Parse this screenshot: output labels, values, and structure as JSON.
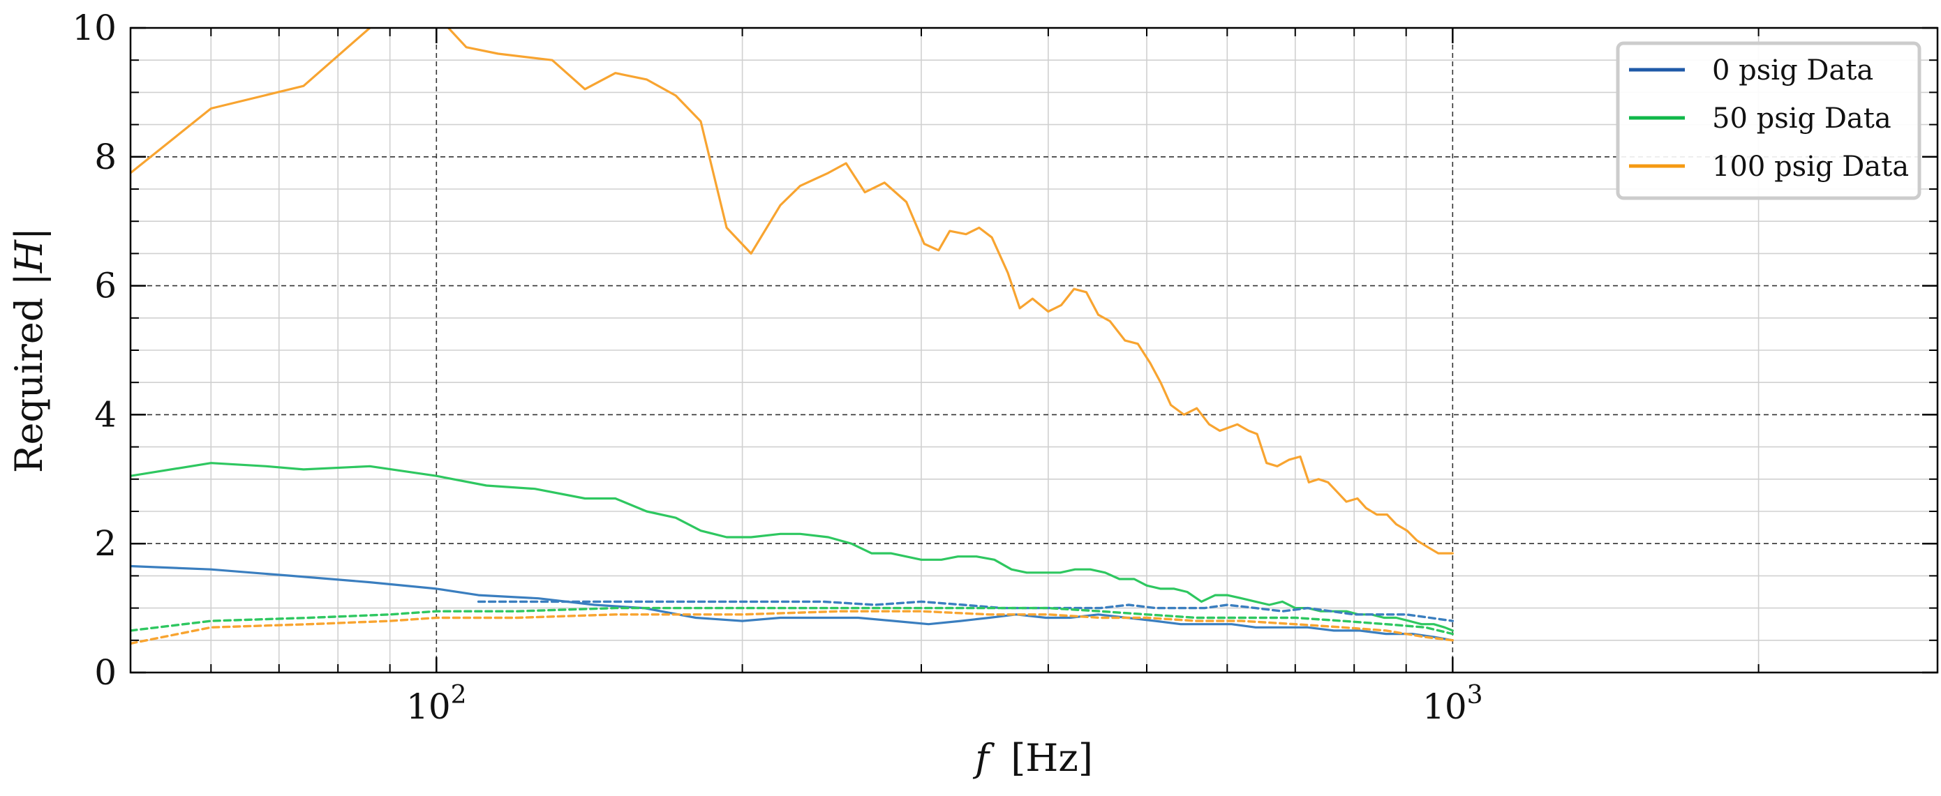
{
  "chart_data": {
    "type": "line",
    "title": "",
    "xlabel": "f [Hz]",
    "xlabel_parts": {
      "symbol": "f",
      "unit": "[Hz]"
    },
    "ylabel": "Required |H|",
    "ylabel_parts": {
      "text": "Required ",
      "symbol": "|H|"
    },
    "x_scale": "log",
    "xlim": [
      50,
      3000
    ],
    "ylim": [
      0,
      10
    ],
    "x_major_ticks": [
      {
        "value": 100,
        "base": "10",
        "exp": "2"
      },
      {
        "value": 1000,
        "base": "10",
        "exp": "3"
      }
    ],
    "y_ticks": [
      0,
      2,
      4,
      6,
      8,
      10
    ],
    "y_tick_labels": [
      "0",
      "2",
      "4",
      "6",
      "8",
      "10"
    ],
    "grid": true,
    "legend_position": "top-right",
    "colors": {
      "0 psig": "#3a7ebf",
      "50 psig": "#2ec760",
      "100 psig": "#f8a430"
    },
    "legend": [
      {
        "label": "0 psig Data",
        "color": "#1f5aa8"
      },
      {
        "label": "50 psig Data",
        "color": "#10b84a"
      },
      {
        "label": "100 psig Data",
        "color": "#f59a12"
      }
    ],
    "series": [
      {
        "group": "100 psig",
        "style": "solid",
        "color": "#f8a430",
        "legend_label": "100 psig Data",
        "x": [
          50,
          60,
          74,
          86,
          90,
          100,
          107,
          115,
          130,
          140,
          150,
          161,
          172,
          182,
          193,
          204,
          218,
          228,
          243,
          253,
          264,
          276,
          290,
          302,
          312,
          320,
          332,
          342,
          352,
          365,
          375,
          386,
          400,
          412,
          424,
          436,
          448,
          460,
          476,
          490,
          504,
          516,
          528,
          544,
          560,
          576,
          590,
          602,
          614,
          630,
          642,
          656,
          672,
          690,
          708,
          722,
          738,
          754,
          770,
          786,
          806,
          822,
          842,
          862,
          880,
          902,
          922,
          944,
          968,
          1000
        ],
        "values": [
          7.75,
          8.75,
          9.1,
          10.0,
          10.2,
          10.2,
          9.7,
          9.6,
          9.5,
          9.05,
          9.3,
          9.2,
          8.95,
          8.55,
          6.9,
          6.5,
          7.25,
          7.55,
          7.75,
          7.9,
          7.45,
          7.6,
          7.3,
          6.65,
          6.55,
          6.85,
          6.8,
          6.9,
          6.75,
          6.2,
          5.65,
          5.8,
          5.6,
          5.7,
          5.95,
          5.9,
          5.55,
          5.45,
          5.15,
          5.1,
          4.8,
          4.5,
          4.15,
          4.0,
          4.1,
          3.85,
          3.75,
          3.8,
          3.85,
          3.75,
          3.7,
          3.25,
          3.2,
          3.3,
          3.35,
          2.95,
          3.0,
          2.95,
          2.8,
          2.65,
          2.7,
          2.55,
          2.45,
          2.45,
          2.3,
          2.2,
          2.05,
          1.95,
          1.85,
          1.85
        ]
      },
      {
        "group": "50 psig",
        "style": "solid",
        "color": "#2ec760",
        "legend_label": "50 psig Data",
        "x": [
          50,
          60,
          68,
          74,
          86,
          100,
          112,
          125,
          140,
          150,
          161,
          172,
          182,
          193,
          204,
          218,
          228,
          243,
          256,
          268,
          280,
          300,
          314,
          326,
          340,
          354,
          368,
          381,
          395,
          411,
          425,
          440,
          455,
          470,
          486,
          500,
          516,
          532,
          548,
          566,
          584,
          600,
          620,
          640,
          660,
          680,
          700,
          720,
          742,
          764,
          786,
          808,
          832,
          856,
          880,
          906,
          932,
          958,
          982,
          1000
        ],
        "values": [
          3.05,
          3.25,
          3.2,
          3.15,
          3.2,
          3.05,
          2.9,
          2.85,
          2.7,
          2.7,
          2.5,
          2.4,
          2.2,
          2.1,
          2.1,
          2.15,
          2.15,
          2.1,
          2.0,
          1.85,
          1.85,
          1.75,
          1.75,
          1.8,
          1.8,
          1.75,
          1.6,
          1.55,
          1.55,
          1.55,
          1.6,
          1.6,
          1.55,
          1.45,
          1.45,
          1.35,
          1.3,
          1.3,
          1.25,
          1.1,
          1.2,
          1.2,
          1.15,
          1.1,
          1.05,
          1.1,
          1.0,
          1.0,
          0.95,
          0.95,
          0.95,
          0.9,
          0.9,
          0.85,
          0.85,
          0.8,
          0.75,
          0.75,
          0.7,
          0.65
        ]
      },
      {
        "group": "0 psig",
        "style": "solid",
        "color": "#3a7ebf",
        "legend_label": "0 psig Data",
        "x": [
          50,
          60,
          72,
          86,
          100,
          110,
          126,
          143,
          160,
          180,
          200,
          218,
          238,
          260,
          282,
          305,
          328,
          350,
          372,
          398,
          420,
          448,
          478,
          510,
          540,
          572,
          606,
          640,
          680,
          720,
          764,
          810,
          860,
          912,
          960,
          1000
        ],
        "values": [
          1.65,
          1.6,
          1.5,
          1.4,
          1.3,
          1.2,
          1.15,
          1.05,
          1.0,
          0.85,
          0.8,
          0.85,
          0.85,
          0.85,
          0.8,
          0.75,
          0.8,
          0.85,
          0.9,
          0.85,
          0.85,
          0.9,
          0.85,
          0.8,
          0.75,
          0.75,
          0.75,
          0.7,
          0.7,
          0.7,
          0.65,
          0.65,
          0.6,
          0.6,
          0.55,
          0.5
        ]
      },
      {
        "group": "0 psig",
        "style": "dashed",
        "color": "#3a7ebf",
        "x": [
          110,
          130,
          150,
          180,
          210,
          240,
          270,
          300,
          330,
          360,
          390,
          420,
          450,
          480,
          510,
          540,
          570,
          600,
          640,
          680,
          720,
          760,
          800,
          850,
          900,
          950,
          1000
        ],
        "values": [
          1.1,
          1.1,
          1.1,
          1.1,
          1.1,
          1.1,
          1.05,
          1.1,
          1.05,
          1.0,
          1.0,
          1.0,
          1.0,
          1.05,
          1.0,
          1.0,
          1.0,
          1.05,
          1.0,
          0.95,
          1.0,
          0.95,
          0.9,
          0.9,
          0.9,
          0.85,
          0.8
        ]
      },
      {
        "group": "50 psig",
        "style": "dashed",
        "color": "#2ec760",
        "x": [
          50,
          60,
          75,
          90,
          100,
          120,
          150,
          200,
          250,
          300,
          350,
          400,
          450,
          500,
          560,
          620,
          700,
          780,
          860,
          940,
          1000
        ],
        "values": [
          0.65,
          0.8,
          0.85,
          0.9,
          0.95,
          0.95,
          1.0,
          1.0,
          1.0,
          1.0,
          1.0,
          1.0,
          0.95,
          0.9,
          0.85,
          0.85,
          0.85,
          0.8,
          0.75,
          0.7,
          0.6
        ]
      },
      {
        "group": "100 psig",
        "style": "dashed",
        "color": "#f8a430",
        "x": [
          50,
          60,
          75,
          90,
          100,
          120,
          150,
          200,
          250,
          300,
          350,
          400,
          450,
          500,
          560,
          620,
          700,
          780,
          860,
          940,
          1000
        ],
        "values": [
          0.45,
          0.7,
          0.75,
          0.8,
          0.85,
          0.85,
          0.9,
          0.9,
          0.95,
          0.95,
          0.9,
          0.9,
          0.85,
          0.85,
          0.8,
          0.8,
          0.75,
          0.7,
          0.65,
          0.55,
          0.5
        ]
      }
    ]
  }
}
